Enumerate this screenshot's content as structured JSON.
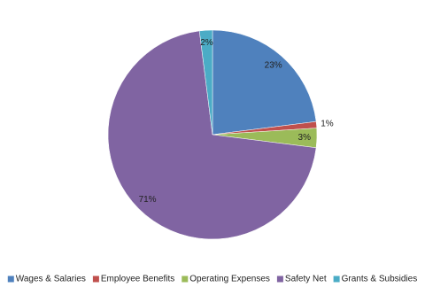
{
  "chart_data": {
    "type": "pie",
    "categories": [
      "Wages & Salaries",
      "Employee Benefits",
      "Operating Expenses",
      "Safety Net",
      "Grants & Subsidies"
    ],
    "values": [
      23,
      1,
      3,
      71,
      2
    ],
    "value_labels": [
      "23%",
      "1%",
      "3%",
      "71%",
      "2%"
    ],
    "colors": [
      "#4f81bd",
      "#c0504d",
      "#9bbb59",
      "#8064a2",
      "#4bacc6"
    ],
    "legend": "bottom"
  }
}
